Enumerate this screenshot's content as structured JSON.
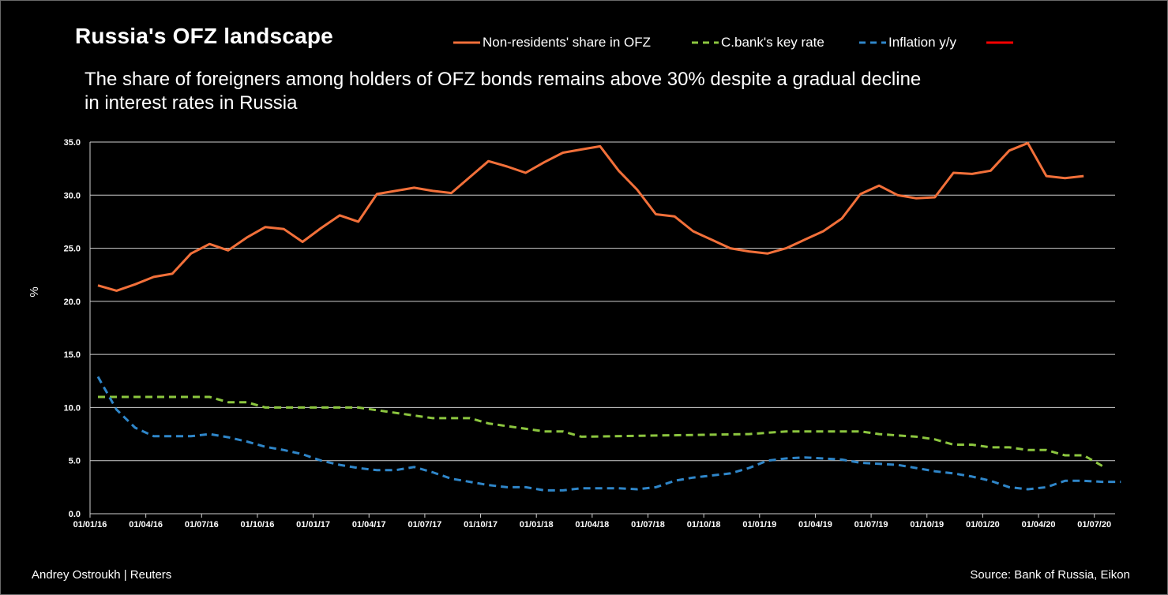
{
  "title": "Russia's OFZ landscape",
  "subtitle": "The share of foreigners among holders of OFZ bonds remains above 30% despite a gradual decline in interest rates in Russia",
  "credit": "Andrey Ostroukh  | Reuters",
  "source": "Source: Bank of Russia, Eikon",
  "colors": {
    "nonres": "#f2703a",
    "keyrate": "#8cc63f",
    "inflation": "#2f86c9",
    "extra": "#ff0000"
  },
  "chart_data": {
    "type": "line",
    "title": "Russia's OFZ landscape",
    "ylabel": "%",
    "xlabel": "",
    "ylim": [
      0,
      35
    ],
    "yticks": [
      "0.0",
      "5.0",
      "10.0",
      "15.0",
      "20.0",
      "25.0",
      "30.0",
      "35.0"
    ],
    "xticks": [
      "01/01/16",
      "01/04/16",
      "01/07/16",
      "01/10/16",
      "01/01/17",
      "01/04/17",
      "01/07/17",
      "01/10/17",
      "01/01/18",
      "01/04/18",
      "01/07/18",
      "01/10/18",
      "01/01/19",
      "01/04/19",
      "01/07/19",
      "01/10/19",
      "01/01/20",
      "01/04/20",
      "01/07/20"
    ],
    "x_unit": "months since 01/01/16",
    "grid": true,
    "legend_position": "top",
    "series": [
      {
        "name": "Non-residents' share in OFZ",
        "style": "solid",
        "x": [
          0,
          1,
          2,
          3,
          4,
          5,
          6,
          7,
          8,
          9,
          10,
          11,
          12,
          13,
          14,
          15,
          16,
          17,
          18,
          19,
          20,
          21,
          22,
          23,
          24,
          25,
          26,
          27,
          28,
          29,
          30,
          31,
          32,
          33,
          34,
          35,
          36,
          37,
          38,
          39,
          40,
          41,
          42,
          43,
          44,
          45,
          46,
          47,
          48,
          49,
          50,
          51,
          52,
          53,
          54
        ],
        "values": [
          21.5,
          21.0,
          21.6,
          22.3,
          22.6,
          24.5,
          25.4,
          24.8,
          26.0,
          27.0,
          26.8,
          25.6,
          26.9,
          28.1,
          27.5,
          30.1,
          30.4,
          30.7,
          30.4,
          30.2,
          31.7,
          33.2,
          32.7,
          32.1,
          33.1,
          34.0,
          34.3,
          34.6,
          32.3,
          30.5,
          28.2,
          28.0,
          26.6,
          25.8,
          25.0,
          24.7,
          24.5,
          25.0,
          25.8,
          26.6,
          27.8,
          30.1,
          30.9,
          30.0,
          29.7,
          29.8,
          32.1,
          32.0,
          32.3,
          34.2,
          34.9,
          31.8,
          31.6,
          31.8,
          null
        ]
      },
      {
        "name": "C.bank's key rate",
        "style": "dashed",
        "x": [
          0,
          6,
          7,
          8,
          9,
          12,
          14,
          15,
          18,
          20,
          21,
          22,
          24,
          25,
          26,
          35,
          37,
          41,
          42,
          44,
          45,
          46,
          47,
          48,
          49,
          50,
          51,
          52,
          53,
          54
        ],
        "values": [
          11.0,
          11.0,
          10.5,
          10.5,
          10.0,
          10.0,
          10.0,
          9.75,
          9.0,
          9.0,
          8.5,
          8.25,
          7.75,
          7.75,
          7.25,
          7.5,
          7.75,
          7.75,
          7.5,
          7.25,
          7.0,
          6.5,
          6.5,
          6.25,
          6.25,
          6.0,
          6.0,
          5.5,
          5.5,
          4.5
        ]
      },
      {
        "name": "Inflation y/y",
        "style": "dashed",
        "x": [
          0,
          1,
          2,
          3,
          4,
          5,
          6,
          7,
          8,
          9,
          10,
          11,
          12,
          13,
          14,
          15,
          16,
          17,
          18,
          19,
          20,
          21,
          22,
          23,
          24,
          25,
          26,
          27,
          28,
          29,
          30,
          31,
          32,
          33,
          34,
          35,
          36,
          37,
          38,
          39,
          40,
          41,
          42,
          43,
          44,
          45,
          46,
          47,
          48,
          49,
          50,
          51,
          52,
          53,
          54,
          55
        ],
        "values": [
          12.9,
          9.8,
          8.1,
          7.3,
          7.3,
          7.3,
          7.5,
          7.2,
          6.8,
          6.3,
          6.0,
          5.6,
          5.0,
          4.6,
          4.3,
          4.1,
          4.1,
          4.4,
          3.9,
          3.3,
          3.0,
          2.7,
          2.5,
          2.5,
          2.2,
          2.2,
          2.4,
          2.4,
          2.4,
          2.3,
          2.5,
          3.1,
          3.4,
          3.6,
          3.8,
          4.3,
          5.0,
          5.2,
          5.3,
          5.2,
          5.1,
          4.8,
          4.7,
          4.6,
          4.3,
          4.0,
          3.8,
          3.5,
          3.1,
          2.5,
          2.3,
          2.5,
          3.1,
          3.1,
          3.0,
          3.0
        ]
      },
      {
        "name": "",
        "style": "solid",
        "x": [],
        "values": []
      }
    ]
  }
}
